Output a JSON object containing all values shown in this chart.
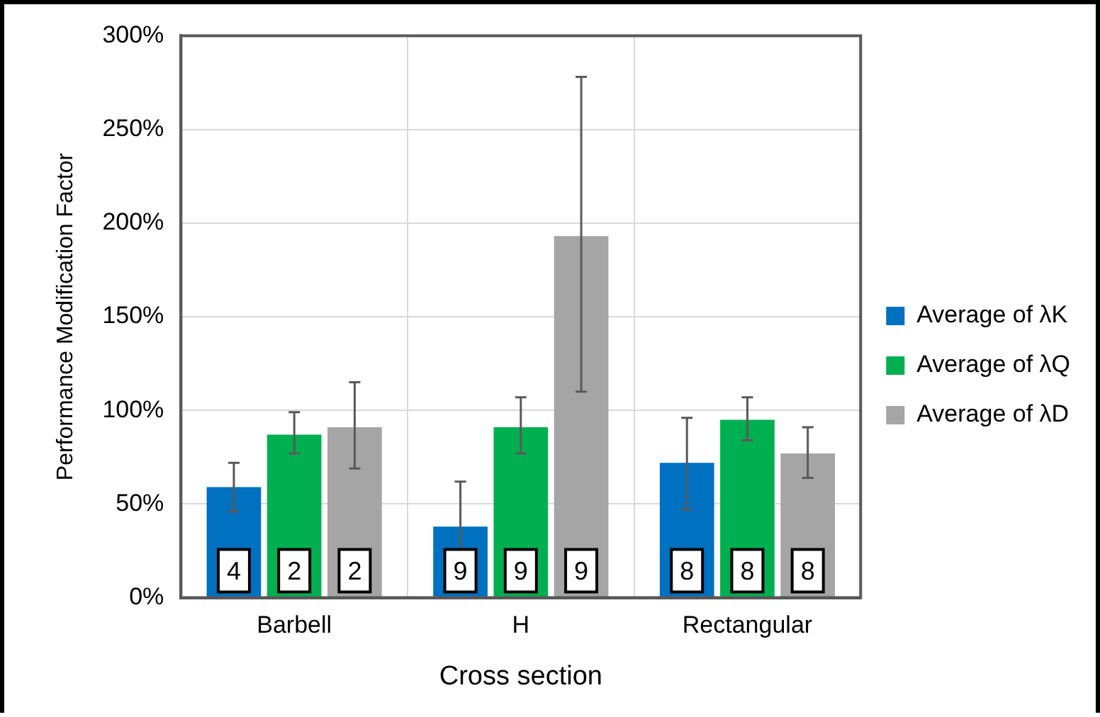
{
  "chart_data": {
    "type": "bar",
    "xlabel": "Cross section",
    "ylabel": "Performance Modification Factor",
    "categories": [
      "Barbell",
      "H",
      "Rectangular"
    ],
    "series": [
      {
        "name": "Average of λK",
        "color": "#0070c0",
        "values": [
          59,
          38,
          72
        ],
        "errors": [
          [
            46,
            72
          ],
          [
            14,
            62
          ],
          [
            47,
            96
          ]
        ]
      },
      {
        "name": "Average of λQ",
        "color": "#00b050",
        "values": [
          87,
          91,
          95
        ],
        "errors": [
          [
            77,
            99
          ],
          [
            77,
            107
          ],
          [
            84,
            107
          ]
        ]
      },
      {
        "name": "Average of λD",
        "color": "#a5a5a5",
        "values": [
          91,
          193,
          77
        ],
        "errors": [
          [
            69,
            115
          ],
          [
            110,
            278
          ],
          [
            64,
            91
          ]
        ]
      }
    ],
    "annotations": [
      "4",
      "2",
      "2",
      "9",
      "9",
      "9",
      "8",
      "8",
      "8"
    ],
    "ylim": [
      0,
      300
    ],
    "yticks": [
      {
        "value": 0,
        "label": "0%"
      },
      {
        "value": 50,
        "label": "50%"
      },
      {
        "value": 100,
        "label": "100%"
      },
      {
        "value": 150,
        "label": "150%"
      },
      {
        "value": 200,
        "label": "200%"
      },
      {
        "value": 250,
        "label": "250%"
      },
      {
        "value": 300,
        "label": "300%"
      }
    ],
    "grid": true,
    "legend": "right"
  }
}
